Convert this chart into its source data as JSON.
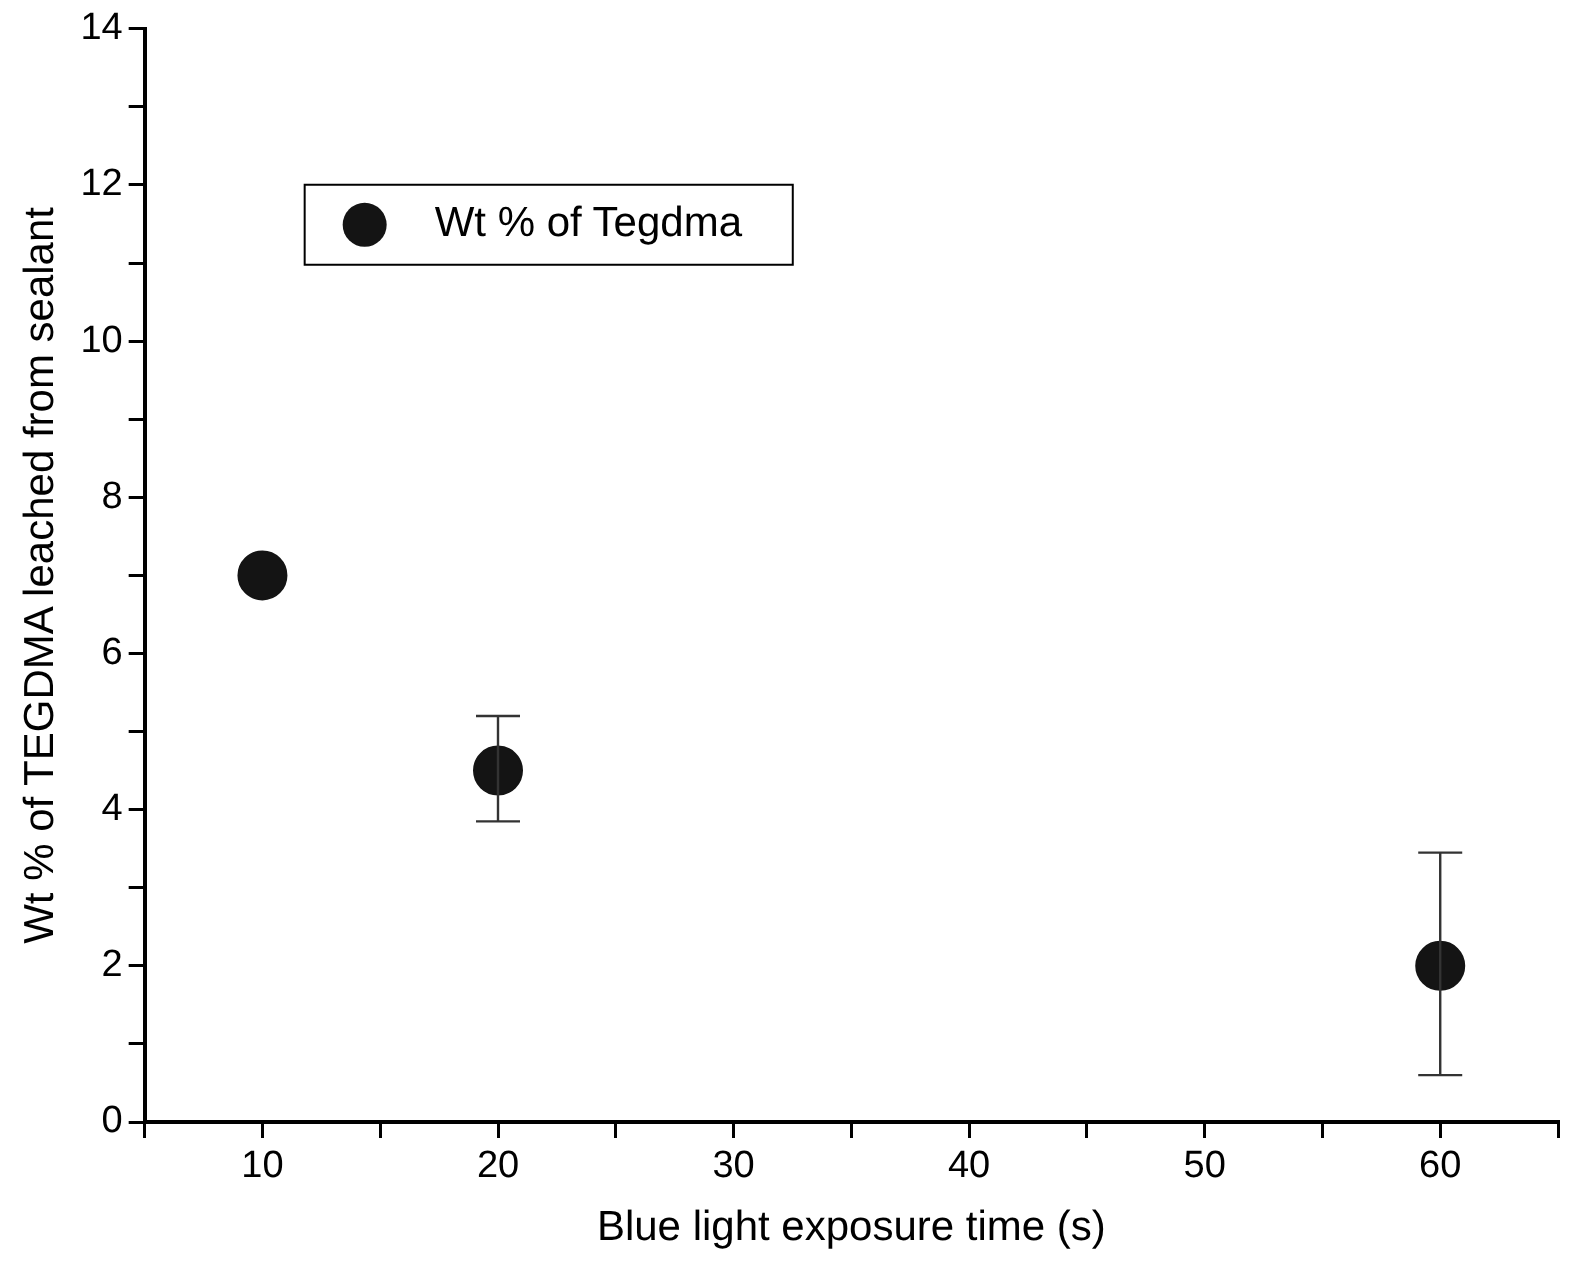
{
  "chart_data": {
    "type": "scatter",
    "xlabel": "Blue light exposure time (s)",
    "ylabel": "Wt % of TEGDMA leached from sealant",
    "x": [
      10,
      20,
      60
    ],
    "series": [
      {
        "name": "Wt % of Tegdma",
        "color": "#141414",
        "values": [
          7.0,
          4.5,
          2.0
        ],
        "errors": [
          null,
          [
            3.85,
            5.2
          ],
          [
            0.6,
            3.45
          ]
        ]
      }
    ],
    "xlim": [
      5,
      65
    ],
    "xticks": [
      {
        "value": 5,
        "label": null
      },
      10,
      {
        "value": 15,
        "label": null
      },
      20,
      {
        "value": 25,
        "label": null
      },
      30,
      {
        "value": 35,
        "label": null
      },
      40,
      {
        "value": 45,
        "label": null
      },
      50,
      {
        "value": 55,
        "label": null
      },
      60,
      {
        "value": 65,
        "label": null
      }
    ],
    "ylim": [
      0,
      14
    ],
    "yticks": [
      0,
      {
        "value": 1,
        "label": null
      },
      2,
      {
        "value": 3,
        "label": null
      },
      4,
      {
        "value": 5,
        "label": null
      },
      6,
      {
        "value": 7,
        "label": null
      },
      8,
      {
        "value": 9,
        "label": null
      },
      10,
      {
        "value": 11,
        "label": null
      },
      12,
      {
        "value": 13,
        "label": null
      },
      14
    ],
    "grid": false,
    "legend": "top left",
    "marker": "circle"
  }
}
